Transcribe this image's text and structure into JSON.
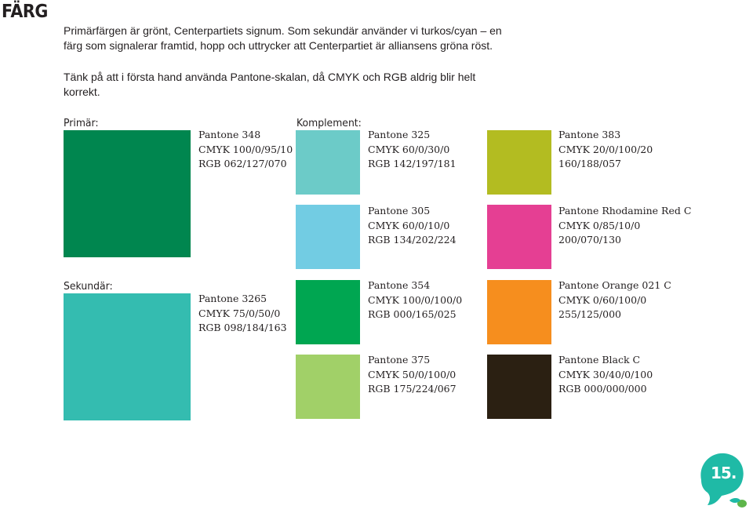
{
  "page": {
    "title": "FÄRG",
    "intro": "Primärfärgen är grönt, Centerpartiets signum. Som sekundär använder vi turkos/cyan – en färg som signalerar framtid, hopp och uttrycker att Centerpartiet är alliansens gröna röst.",
    "note": "Tänk på att i första hand använda Pantone-skalan, då CMYK och RGB aldrig blir helt korrekt.",
    "page_number": "15."
  },
  "labels": {
    "primary": "Primär:",
    "complement": "Komplement:",
    "secondary": "Sekundär:"
  },
  "colors": {
    "p348": {
      "hex": "#00864f",
      "pantone": "Pantone 348",
      "cmyk": "CMYK 100/0/95/10",
      "rgb": "RGB 062/127/070"
    },
    "p3265": {
      "hex": "#34bcb0",
      "pantone": "Pantone 3265",
      "cmyk": "CMYK 75/0/50/0",
      "rgb": "RGB 098/184/163"
    },
    "p325": {
      "hex": "#6ccbc8",
      "pantone": "Pantone 325",
      "cmyk": "CMYK 60/0/30/0",
      "rgb": "RGB 142/197/181"
    },
    "p383": {
      "hex": "#b3bc21",
      "pantone": "Pantone 383",
      "cmyk": "CMYK 20/0/100/20",
      "rgb": "160/188/057"
    },
    "p305": {
      "hex": "#72cce3",
      "pantone": "Pantone 305",
      "cmyk": "CMYK 60/0/10/0",
      "rgb": "RGB 134/202/224"
    },
    "prhod": {
      "hex": "#e53f93",
      "pantone": "Pantone Rhodamine Red C",
      "cmyk": "CMYK 0/85/10/0",
      "rgb": "200/070/130"
    },
    "p354": {
      "hex": "#00a651",
      "pantone": "Pantone 354",
      "cmyk": "CMYK 100/0/100/0",
      "rgb": "RGB 000/165/025"
    },
    "porange": {
      "hex": "#f68e1e",
      "pantone": "Pantone Orange 021 C",
      "cmyk": "CMYK 0/60/100/0",
      "rgb": "255/125/000"
    },
    "p375": {
      "hex": "#a1d068",
      "pantone": "Pantone 375",
      "cmyk": "CMYK 50/0/100/0",
      "rgb": "RGB 175/224/067"
    },
    "pblack": {
      "hex": "#2b2012",
      "pantone": "Pantone Black C",
      "cmyk": "CMYK 30/40/0/100",
      "rgb": "RGB 000/000/000"
    }
  },
  "logo": {
    "color": "#1fbaa6",
    "accent": "#5db54a"
  }
}
